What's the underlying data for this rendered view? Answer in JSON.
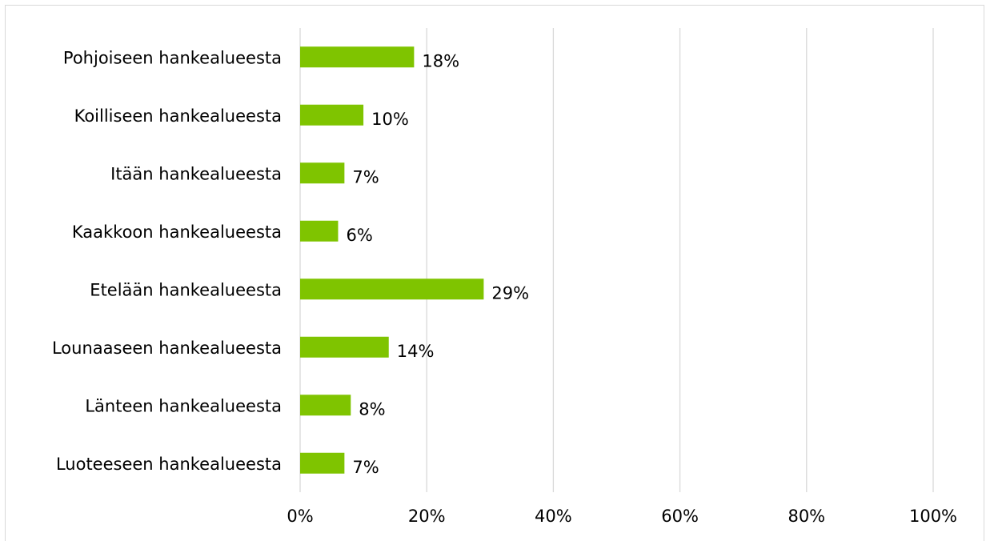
{
  "chart_data": {
    "type": "bar",
    "orientation": "horizontal",
    "categories": [
      "Pohjoiseen hankealueesta",
      "Koilliseen hankealueesta",
      "Itään hankealueesta",
      "Kaakkoon hankealueesta",
      "Etelään hankealueesta",
      "Lounaaseen hankealueesta",
      "Länteen hankealueesta",
      "Luoteeseen hankealueesta"
    ],
    "values": [
      18,
      10,
      7,
      6,
      29,
      14,
      8,
      7
    ],
    "value_labels": [
      "18%",
      "10%",
      "7%",
      "6%",
      "29%",
      "14%",
      "8%",
      "7%"
    ],
    "xlim": [
      0,
      100
    ],
    "x_ticks": [
      "0%",
      "20%",
      "40%",
      "60%",
      "80%",
      "100%"
    ],
    "grid": "vertical",
    "bar_color": "#7fc400",
    "grid_color": "#d9d9d9"
  }
}
